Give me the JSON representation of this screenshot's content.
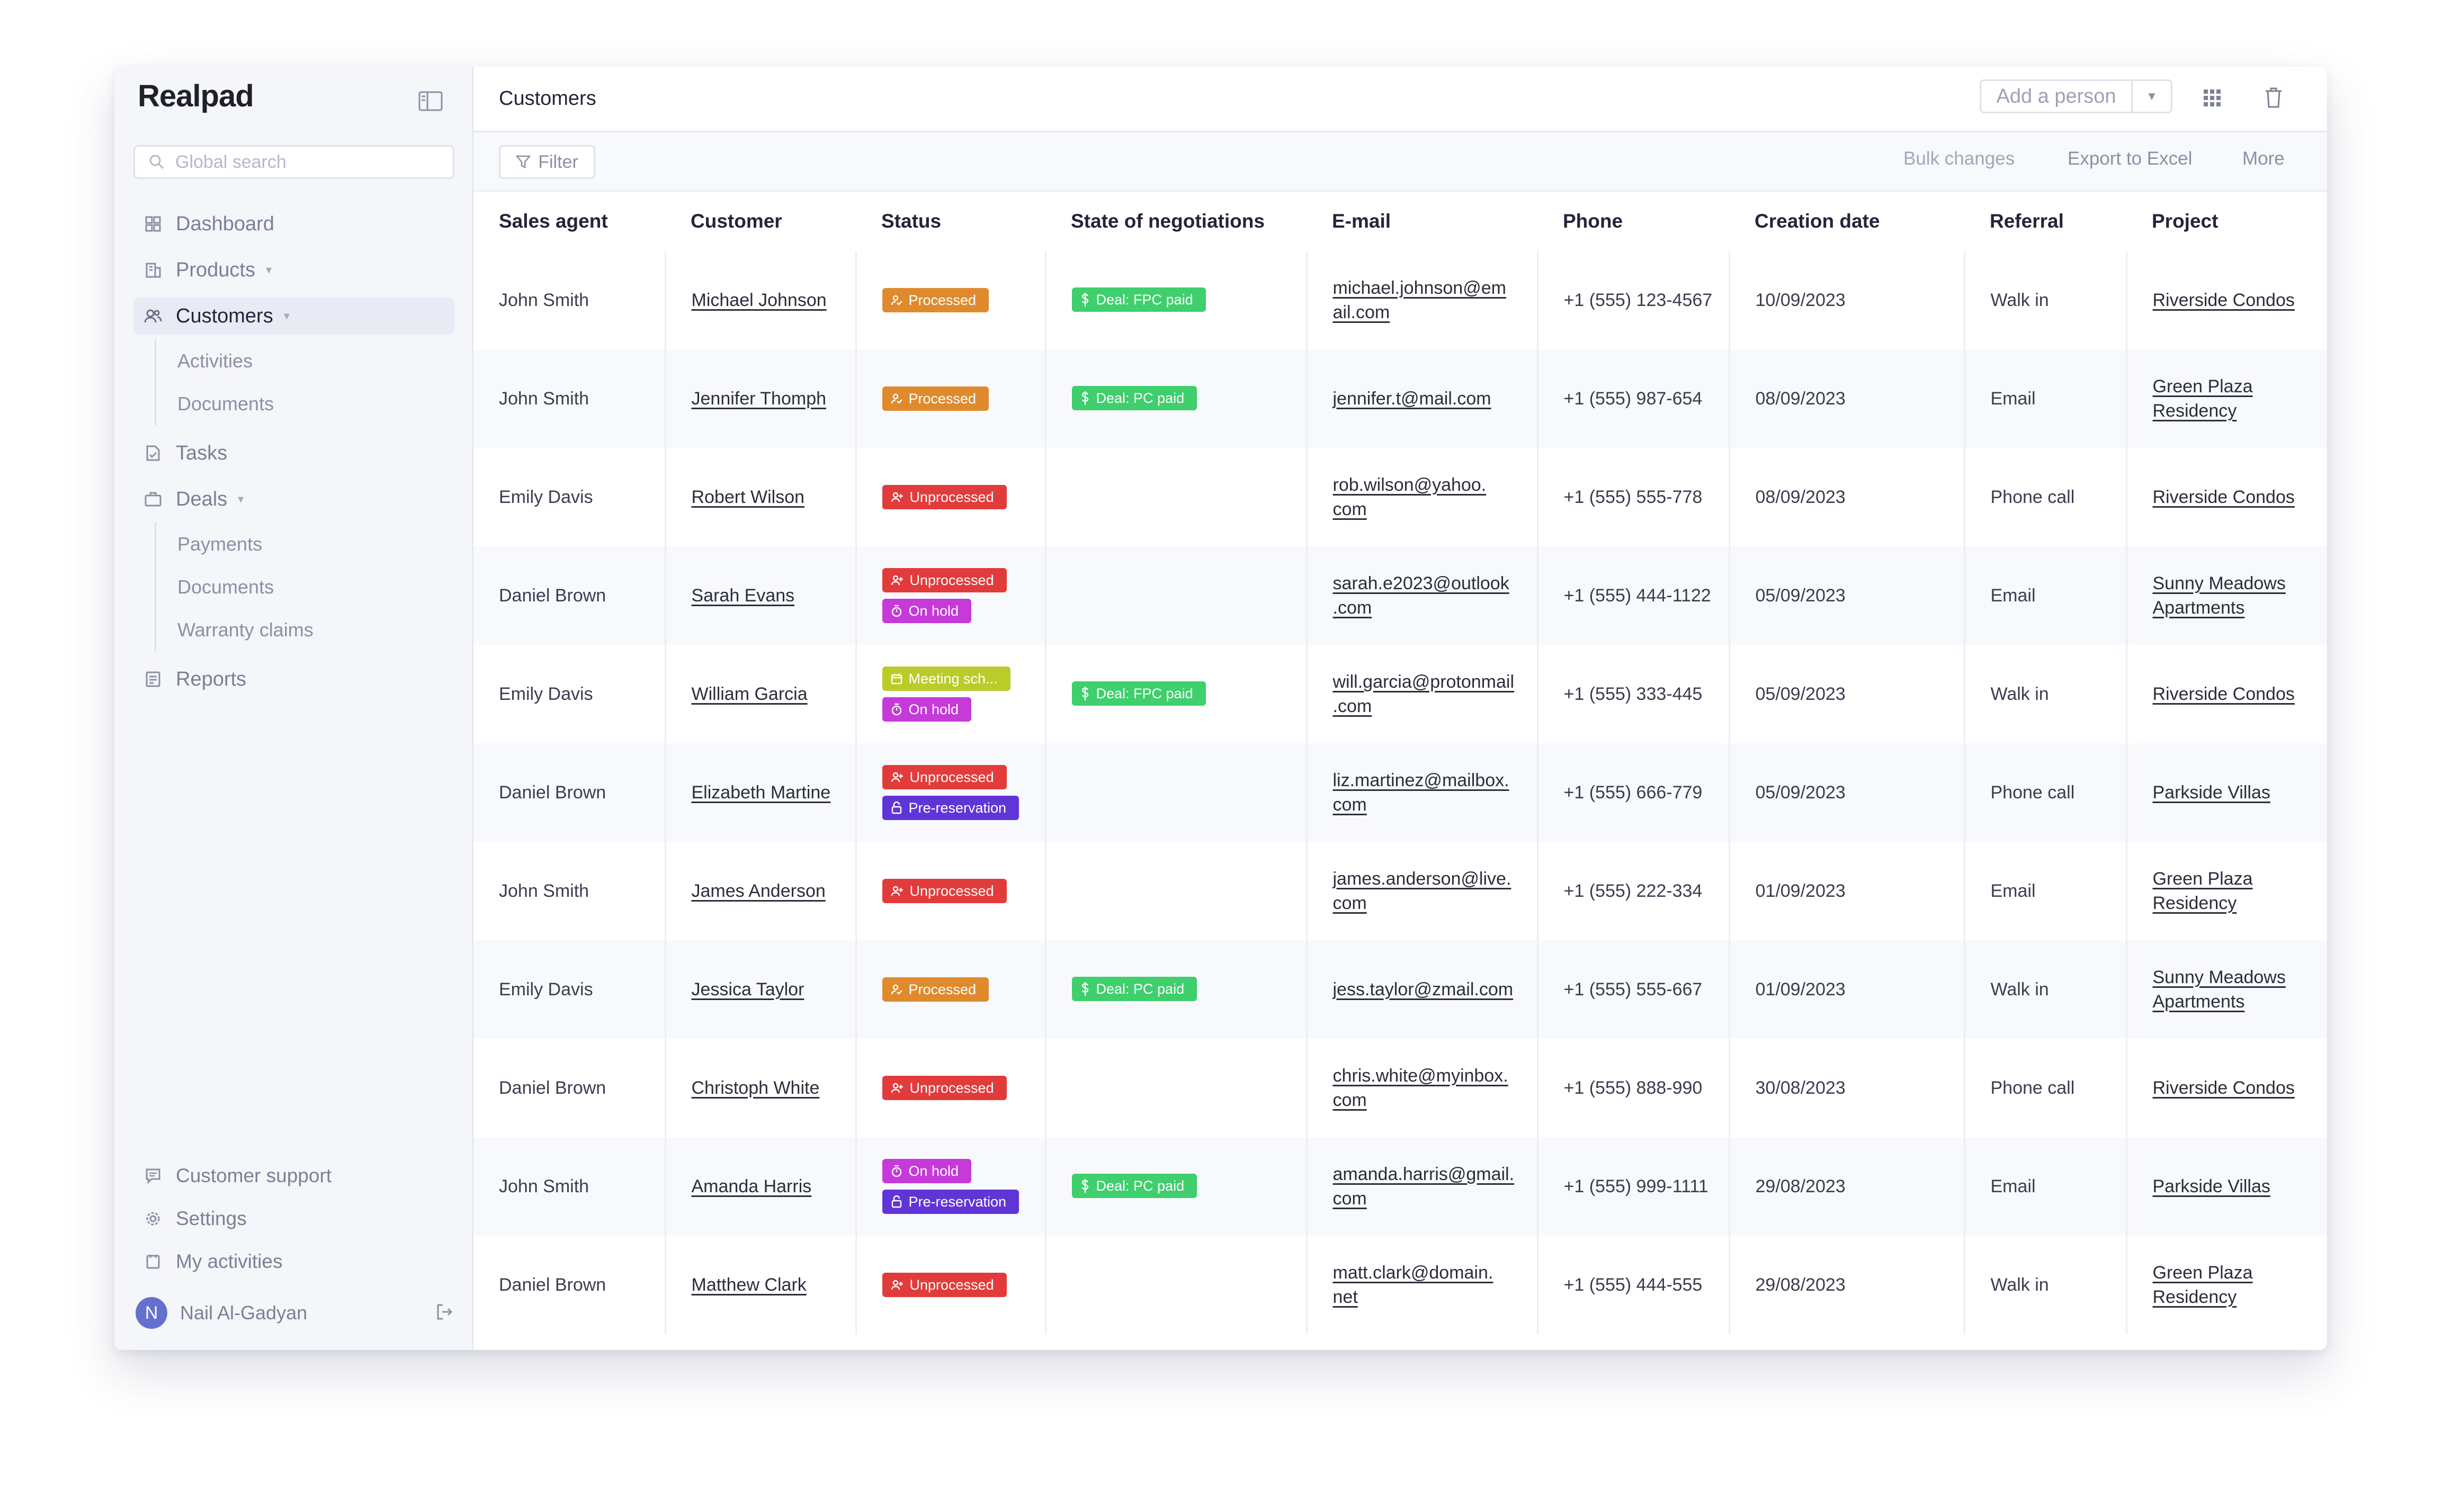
{
  "sidebar": {
    "logo": "Realpad",
    "search_placeholder": "Global search",
    "nav": {
      "dashboard": "Dashboard",
      "products": "Products",
      "customers": "Customers",
      "activities": "Activities",
      "customer_documents": "Documents",
      "tasks": "Tasks",
      "deals": "Deals",
      "payments": "Payments",
      "deal_documents": "Documents",
      "warranty_claims": "Warranty claims",
      "reports": "Reports"
    },
    "footer": {
      "customer_support": "Customer support",
      "settings": "Settings",
      "my_activities": "My activities"
    },
    "user": {
      "initial": "N",
      "name": "Nail Al-Gadyan"
    }
  },
  "header": {
    "title": "Customers",
    "add_person": "Add a person"
  },
  "toolbar": {
    "filter": "Filter",
    "bulk_changes": "Bulk changes",
    "export_excel": "Export to Excel",
    "more": "More"
  },
  "colors": {
    "processed": "#e08a2e",
    "unprocessed": "#e23b3b",
    "on_hold": "#c53ad8",
    "pre_reservation": "#6035d8",
    "meeting": "#b9cc2a",
    "deal": "#3fcf6d"
  },
  "table": {
    "columns": {
      "sales_agent": "Sales agent",
      "customer": "Customer",
      "status": "Status",
      "negotiations": "State of negotiations",
      "email": "E-mail",
      "phone": "Phone",
      "creation_date": "Creation date",
      "referral": "Referral",
      "project": "Project"
    },
    "rows": [
      {
        "agent": "John Smith",
        "customer": "Michael Johnson",
        "status": [
          {
            "label": "Processed",
            "kind": "processed"
          }
        ],
        "deal": "Deal: FPC paid",
        "email1": "michael.johnson@em",
        "email2": "ail.com",
        "phone": "+1 (555) 123-4567",
        "date": "10/09/2023",
        "referral": "Walk in",
        "project1": "Riverside Condos",
        "project2": ""
      },
      {
        "agent": "John Smith",
        "customer": "Jennifer Thomph",
        "status": [
          {
            "label": "Processed",
            "kind": "processed"
          }
        ],
        "deal": "Deal: PC paid",
        "email1": "jennifer.t@mail.com",
        "email2": "",
        "phone": "+1 (555) 987-654",
        "date": "08/09/2023",
        "referral": "Email",
        "project1": "Green Plaza",
        "project2": "Residency"
      },
      {
        "agent": "Emily Davis",
        "customer": "Robert Wilson",
        "status": [
          {
            "label": "Unprocessed",
            "kind": "unprocessed"
          }
        ],
        "deal": "",
        "email1": "rob.wilson@yahoo.",
        "email2": "com",
        "phone": "+1 (555) 555-778",
        "date": "08/09/2023",
        "referral": "Phone call",
        "project1": "Riverside Condos",
        "project2": ""
      },
      {
        "agent": "Daniel Brown",
        "customer": "Sarah Evans",
        "status": [
          {
            "label": "Unprocessed",
            "kind": "unprocessed"
          },
          {
            "label": "On hold",
            "kind": "on_hold"
          }
        ],
        "deal": "",
        "email1": "sarah.e2023@outlook",
        "email2": ".com",
        "phone": "+1 (555) 444-1122",
        "date": "05/09/2023",
        "referral": "Email",
        "project1": "Sunny Meadows",
        "project2": "Apartments"
      },
      {
        "agent": "Emily Davis",
        "customer": "William Garcia",
        "status": [
          {
            "label": "Meeting sch...",
            "kind": "meeting"
          },
          {
            "label": "On hold",
            "kind": "on_hold"
          }
        ],
        "deal": "Deal: FPC paid",
        "email1": "will.garcia@protonmail",
        "email2": ".com",
        "phone": "+1 (555) 333-445",
        "date": "05/09/2023",
        "referral": "Walk in",
        "project1": "Riverside Condos",
        "project2": ""
      },
      {
        "agent": "Daniel Brown",
        "customer": "Elizabeth Martine",
        "status": [
          {
            "label": "Unprocessed",
            "kind": "unprocessed"
          },
          {
            "label": "Pre-reservation",
            "kind": "pre_reservation"
          }
        ],
        "deal": "",
        "email1": "liz.martinez@mailbox.",
        "email2": "com",
        "phone": "+1 (555) 666-779",
        "date": "05/09/2023",
        "referral": "Phone call",
        "project1": "Parkside Villas",
        "project2": ""
      },
      {
        "agent": "John Smith",
        "customer": "James Anderson",
        "status": [
          {
            "label": "Unprocessed",
            "kind": "unprocessed"
          }
        ],
        "deal": "",
        "email1": "james.anderson@live.",
        "email2": "com",
        "phone": "+1 (555) 222-334",
        "date": "01/09/2023",
        "referral": "Email",
        "project1": "Green Plaza",
        "project2": "Residency"
      },
      {
        "agent": "Emily Davis",
        "customer": "Jessica Taylor",
        "status": [
          {
            "label": "Processed",
            "kind": "processed"
          }
        ],
        "deal": "Deal: PC paid",
        "email1": "jess.taylor@zmail.com",
        "email2": "",
        "phone": "+1 (555) 555-667",
        "date": "01/09/2023",
        "referral": "Walk in",
        "project1": "Sunny Meadows",
        "project2": "Apartments"
      },
      {
        "agent": "Daniel Brown",
        "customer": "Christoph White",
        "status": [
          {
            "label": "Unprocessed",
            "kind": "unprocessed"
          }
        ],
        "deal": "",
        "email1": "chris.white@myinbox.",
        "email2": "com",
        "phone": "+1 (555) 888-990",
        "date": "30/08/2023",
        "referral": "Phone call",
        "project1": "Riverside Condos",
        "project2": ""
      },
      {
        "agent": "John Smith",
        "customer": "Amanda Harris",
        "status": [
          {
            "label": "On hold",
            "kind": "on_hold"
          },
          {
            "label": "Pre-reservation",
            "kind": "pre_reservation"
          }
        ],
        "deal": "Deal: PC paid",
        "email1": "amanda.harris@gmail.",
        "email2": "com",
        "phone": "+1 (555) 999-1111",
        "date": "29/08/2023",
        "referral": "Email",
        "project1": "Parkside Villas",
        "project2": ""
      },
      {
        "agent": "Daniel Brown",
        "customer": "Matthew Clark",
        "status": [
          {
            "label": "Unprocessed",
            "kind": "unprocessed"
          }
        ],
        "deal": "",
        "email1": "matt.clark@domain.",
        "email2": "net",
        "phone": "+1 (555) 444-555",
        "date": "29/08/2023",
        "referral": "Walk in",
        "project1": "Green Plaza",
        "project2": "Residency"
      }
    ]
  }
}
